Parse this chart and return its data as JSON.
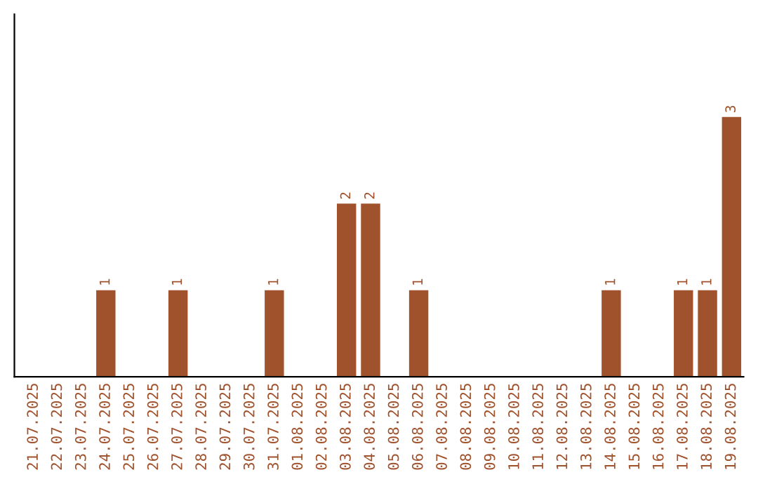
{
  "chart_data": {
    "type": "bar",
    "categories": [
      "21.07.2025",
      "22.07.2025",
      "23.07.2025",
      "24.07.2025",
      "25.07.2025",
      "26.07.2025",
      "27.07.2025",
      "28.07.2025",
      "29.07.2025",
      "30.07.2025",
      "31.07.2025",
      "01.08.2025",
      "02.08.2025",
      "03.08.2025",
      "04.08.2025",
      "05.08.2025",
      "06.08.2025",
      "07.08.2025",
      "08.08.2025",
      "09.08.2025",
      "10.08.2025",
      "11.08.2025",
      "12.08.2025",
      "13.08.2025",
      "14.08.2025",
      "15.08.2025",
      "16.08.2025",
      "17.08.2025",
      "18.08.2025",
      "19.08.2025"
    ],
    "values": [
      0,
      0,
      0,
      1,
      0,
      0,
      1,
      0,
      0,
      0,
      1,
      0,
      0,
      2,
      2,
      0,
      1,
      0,
      0,
      0,
      0,
      0,
      0,
      0,
      1,
      0,
      0,
      1,
      1,
      3
    ],
    "value_labels": [
      null,
      null,
      null,
      "1",
      null,
      null,
      "1",
      null,
      null,
      null,
      "1",
      null,
      null,
      "2",
      "2",
      null,
      "1",
      null,
      null,
      null,
      null,
      null,
      null,
      null,
      "1",
      null,
      null,
      "1",
      "1",
      "3"
    ],
    "color": "#a0522d",
    "tick_labels": "x",
    "grid": false,
    "legend": false
  }
}
